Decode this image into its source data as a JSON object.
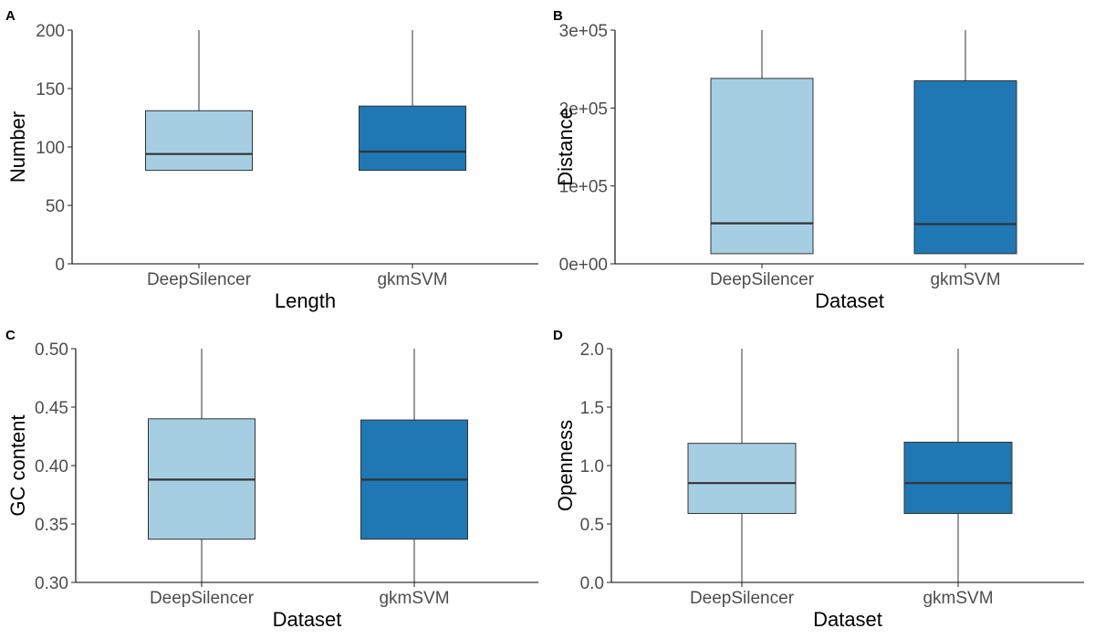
{
  "colors": {
    "box_light": "#a6cee3",
    "box_dark": "#1f78b4",
    "lines": "#333333",
    "axis": "#000000"
  },
  "chart_data": [
    {
      "panel": "A",
      "type": "box",
      "categories": [
        "DeepSilencer",
        "gkmSVM"
      ],
      "xlabel": "Length",
      "ylabel": "Number",
      "ylim": [
        0,
        200
      ],
      "yticks": [
        0,
        50,
        100,
        150,
        200
      ],
      "ytick_labels": [
        "0",
        "50",
        "100",
        "150",
        "200"
      ],
      "boxes": [
        {
          "whisker_low": 80,
          "q1": 80,
          "median": 94,
          "q3": 131,
          "whisker_high": 200
        },
        {
          "whisker_low": 80,
          "q1": 80,
          "median": 96,
          "q3": 135,
          "whisker_high": 200
        }
      ]
    },
    {
      "panel": "B",
      "type": "box",
      "categories": [
        "DeepSilencer",
        "gkmSVM"
      ],
      "xlabel": "Dataset",
      "ylabel": "Distance",
      "ylim": [
        0,
        300000
      ],
      "yticks": [
        0,
        100000,
        200000,
        300000
      ],
      "ytick_labels": [
        "0e+00",
        "1e+05",
        "2e+05",
        "3e+05"
      ],
      "boxes": [
        {
          "whisker_low": 13000,
          "q1": 13000,
          "median": 52000,
          "q3": 238000,
          "whisker_high": 300000
        },
        {
          "whisker_low": 13000,
          "q1": 13000,
          "median": 51000,
          "q3": 235000,
          "whisker_high": 300000
        }
      ]
    },
    {
      "panel": "C",
      "type": "box",
      "categories": [
        "DeepSilencer",
        "gkmSVM"
      ],
      "xlabel": "Dataset",
      "ylabel": "GC content",
      "ylim": [
        0.3,
        0.5
      ],
      "yticks": [
        0.3,
        0.35,
        0.4,
        0.45,
        0.5
      ],
      "ytick_labels": [
        "0.30",
        "0.35",
        "0.40",
        "0.45",
        "0.50"
      ],
      "boxes": [
        {
          "whisker_low": 0.3,
          "q1": 0.337,
          "median": 0.388,
          "q3": 0.44,
          "whisker_high": 0.5
        },
        {
          "whisker_low": 0.3,
          "q1": 0.337,
          "median": 0.388,
          "q3": 0.439,
          "whisker_high": 0.5
        }
      ]
    },
    {
      "panel": "D",
      "type": "box",
      "categories": [
        "DeepSilencer",
        "gkmSVM"
      ],
      "xlabel": "Dataset",
      "ylabel": "Openness",
      "ylim": [
        0,
        2
      ],
      "yticks": [
        0,
        0.5,
        1,
        1.5,
        2
      ],
      "ytick_labels": [
        "0.0",
        "0.5",
        "1.0",
        "1.5",
        "2.0"
      ],
      "boxes": [
        {
          "whisker_low": 0,
          "q1": 0.59,
          "median": 0.85,
          "q3": 1.19,
          "whisker_high": 2
        },
        {
          "whisker_low": 0,
          "q1": 0.59,
          "median": 0.85,
          "q3": 1.2,
          "whisker_high": 2
        }
      ]
    }
  ]
}
